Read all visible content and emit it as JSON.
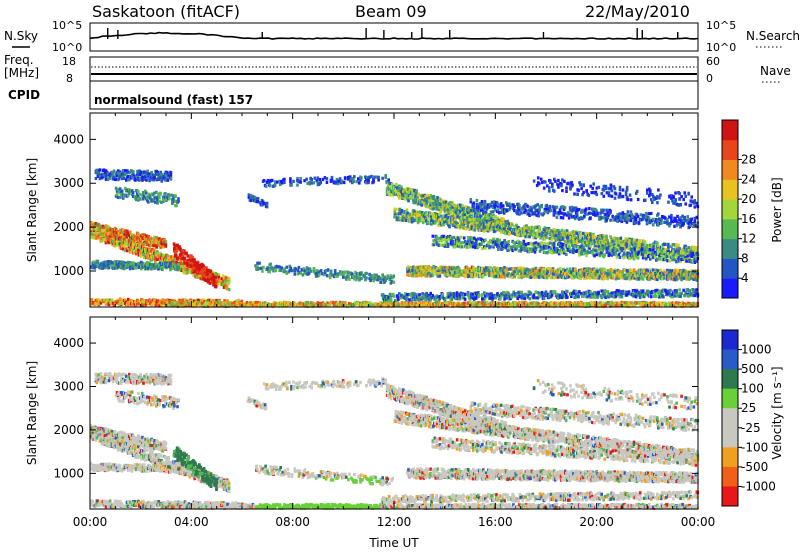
{
  "header": {
    "station": "Saskatoon (fitACF)",
    "beam": "Beam 09",
    "date": "22/May/2010"
  },
  "nsky_panel": {
    "left_label": "N.Sky",
    "right_label": "N.Search",
    "left_ticks": [
      "10^5",
      "10^0"
    ],
    "right_ticks": [
      "10^5",
      "10^0"
    ]
  },
  "freq_panel": {
    "left_label_1": "Freq.",
    "left_label_2": "[MHz]",
    "right_label": "Nave",
    "left_ticks": [
      "18",
      "8"
    ],
    "right_ticks": [
      "60",
      "0"
    ],
    "cpid_label": "CPID",
    "cpid_text": "normalsound (fast) 157"
  },
  "chart_data": [
    {
      "type": "heatmap",
      "name": "power",
      "xlabel": "",
      "ylabel": "Slant Range [km]",
      "xlim": [
        0,
        24
      ],
      "ylim": [
        180,
        4600
      ],
      "y_ticks": [
        "1000",
        "2000",
        "3000",
        "4000"
      ],
      "colorbar_label": "Power [dB]",
      "colorbar_ticks": [
        "4",
        "8",
        "12",
        "16",
        "20",
        "24",
        "28"
      ],
      "colors": [
        "#1a1aff",
        "#2355c4",
        "#3c8a84",
        "#57b854",
        "#a2d63a",
        "#e8c21e",
        "#f08a1e",
        "#e8461a",
        "#d01414"
      ]
    },
    {
      "type": "heatmap",
      "name": "velocity",
      "xlabel": "Time UT",
      "ylabel": "Slant Range [km]",
      "xlim": [
        0,
        24
      ],
      "ylim": [
        180,
        4600
      ],
      "x_ticks": [
        "00:00",
        "04:00",
        "08:00",
        "12:00",
        "16:00",
        "20:00",
        "00:00"
      ],
      "y_ticks": [
        "1000",
        "2000",
        "3000",
        "4000"
      ],
      "colorbar_label": "Velocity [m s⁻¹]",
      "colorbar_ticks": [
        "1000",
        "500",
        "100",
        "25",
        "-25",
        "-100",
        "-500",
        "-1000"
      ],
      "colors": [
        "#1a2ad0",
        "#2a5ac8",
        "#2e7a4e",
        "#6ad03a",
        "#c8c8c0",
        "#c8c8c0",
        "#f0a020",
        "#f06018",
        "#e81818"
      ]
    }
  ]
}
